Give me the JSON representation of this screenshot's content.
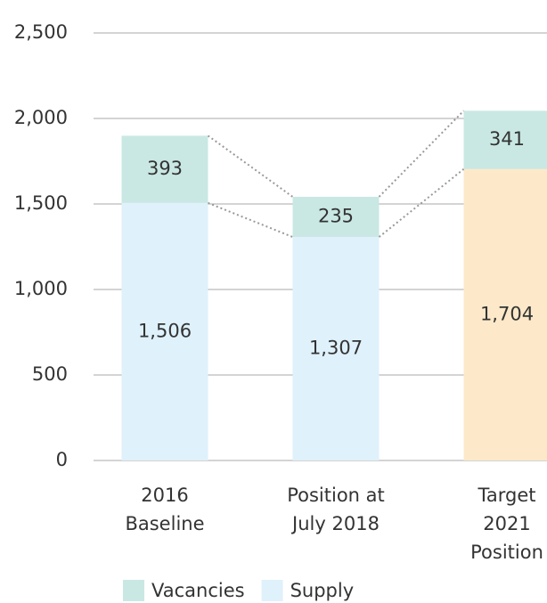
{
  "chart_data": {
    "type": "stacked_bar",
    "categories": [
      [
        "2016",
        "Baseline"
      ],
      [
        "Position at",
        "July 2018"
      ],
      [
        "Target",
        "2021",
        "Position"
      ]
    ],
    "series": [
      {
        "name": "Supply",
        "color": "#dff1fb",
        "point_colors": [
          "#dff1fb",
          "#dff1fb",
          "#fde9c9"
        ],
        "values": [
          1506,
          1307,
          1704
        ],
        "value_labels": [
          "1,506",
          "1,307",
          "1,704"
        ]
      },
      {
        "name": "Vacancies",
        "color": "#c9e8e3",
        "values": [
          393,
          235,
          341
        ]
      }
    ],
    "legend_order": [
      1,
      0
    ],
    "ylim": [
      0,
      2500
    ],
    "yticks": [
      0,
      500,
      {
        "value": 1000,
        "label": "1,000"
      },
      {
        "value": 1500,
        "label": "1,500"
      },
      {
        "value": 2000,
        "label": "2,000"
      },
      {
        "value": 2500,
        "label": "2,500"
      }
    ],
    "grid": true,
    "legend": "bottom"
  }
}
